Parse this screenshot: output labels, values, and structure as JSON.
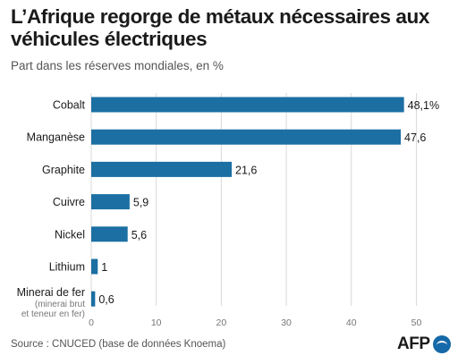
{
  "title": "L’Afrique regorge de métaux nécessaires aux véhicules électriques",
  "subtitle": "Part dans les réserves mondiales, en %",
  "source": "Source : CNUCED (base de données Knoema)",
  "logo": {
    "text": "AFP",
    "icon": "afp-logo-dot-icon"
  },
  "colors": {
    "bar": "#1b6fa3",
    "grid": "#d9d9d9",
    "text": "#1a1a1a",
    "muted": "#777777"
  },
  "chart_data": {
    "type": "bar",
    "orientation": "horizontal",
    "categories": [
      "Cobalt",
      "Manganèse",
      "Graphite",
      "Cuivre",
      "Nickel",
      "Lithium",
      "Minerai de fer"
    ],
    "category_notes": [
      "",
      "",
      "",
      "",
      "",
      "",
      "(minerai brut et teneur en fer)"
    ],
    "values": [
      48.1,
      47.6,
      21.6,
      5.9,
      5.6,
      1,
      0.6
    ],
    "value_labels": [
      "48,1%",
      "47,6",
      "21,6",
      "5,9",
      "5,6",
      "1",
      "0,6"
    ],
    "xlim": [
      0,
      52
    ],
    "xticks": [
      0,
      10,
      20,
      30,
      40,
      50
    ],
    "grid": true
  }
}
